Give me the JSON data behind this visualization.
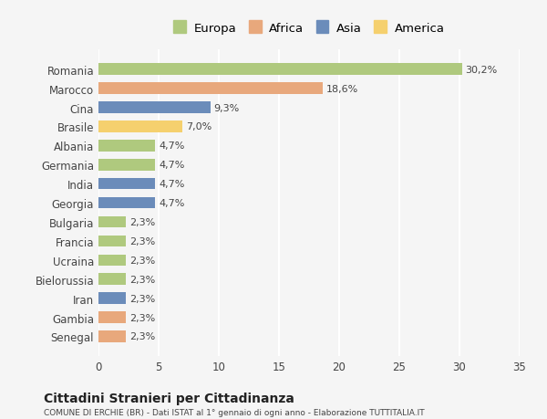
{
  "categories": [
    "Romania",
    "Marocco",
    "Cina",
    "Brasile",
    "Albania",
    "Germania",
    "India",
    "Georgia",
    "Bulgaria",
    "Francia",
    "Ucraina",
    "Bielorussia",
    "Iran",
    "Gambia",
    "Senegal"
  ],
  "values": [
    30.2,
    18.6,
    9.3,
    7.0,
    4.7,
    4.7,
    4.7,
    4.7,
    2.3,
    2.3,
    2.3,
    2.3,
    2.3,
    2.3,
    2.3
  ],
  "colors": [
    "#afc97e",
    "#e8a87c",
    "#6b8cba",
    "#f5d06e",
    "#afc97e",
    "#afc97e",
    "#6b8cba",
    "#6b8cba",
    "#afc97e",
    "#afc97e",
    "#afc97e",
    "#afc97e",
    "#6b8cba",
    "#e8a87c",
    "#e8a87c"
  ],
  "labels": [
    "30,2%",
    "18,6%",
    "9,3%",
    "7,0%",
    "4,7%",
    "4,7%",
    "4,7%",
    "4,7%",
    "2,3%",
    "2,3%",
    "2,3%",
    "2,3%",
    "2,3%",
    "2,3%",
    "2,3%"
  ],
  "legend_labels": [
    "Europa",
    "Africa",
    "Asia",
    "America"
  ],
  "legend_colors": [
    "#afc97e",
    "#e8a87c",
    "#6b8cba",
    "#f5d06e"
  ],
  "title": "Cittadini Stranieri per Cittadinanza",
  "subtitle": "COMUNE DI ERCHIE (BR) - Dati ISTAT al 1° gennaio di ogni anno - Elaborazione TUTTITALIA.IT",
  "xlim": [
    0,
    35
  ],
  "xticks": [
    0,
    5,
    10,
    15,
    20,
    25,
    30,
    35
  ],
  "background_color": "#f5f5f5",
  "grid_color": "#ffffff",
  "bar_height": 0.6
}
